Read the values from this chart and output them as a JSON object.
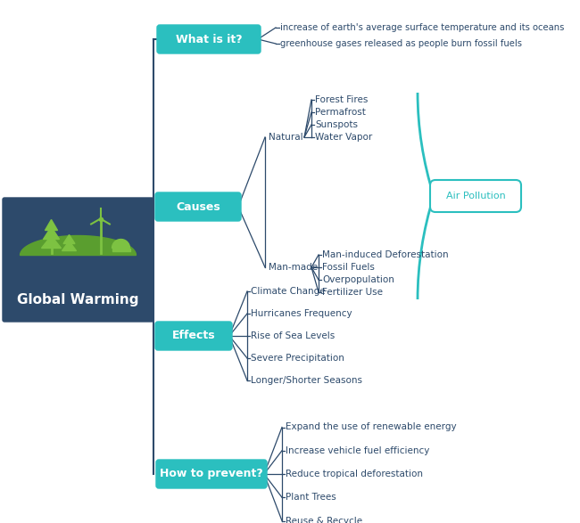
{
  "title": "Global Warming",
  "title_bg": "#2d4a6b",
  "title_text_color": "#ffffff",
  "branch_color": "#2d4a6b",
  "node_bg": "#2bbfbf",
  "node_text_color": "#ffffff",
  "leaf_text_color": "#2d4a6b",
  "air_pollution_color": "#2bbfbf",
  "what_leaves": [
    "increase of earth's average surface temperature and its oceans",
    "greenhouse gases released as people burn fossil fuels"
  ],
  "nat_leaves": [
    "Forest Fires",
    "Permafrost",
    "Sunspots",
    "Water Vapor"
  ],
  "man_leaves": [
    "Man-induced Deforestation",
    "Fossil Fuels",
    "Overpopulation",
    "Fertilizer Use"
  ],
  "eff_leaves": [
    "Climate Change",
    "Hurricanes Frequency",
    "Rise of Sea Levels",
    "Severe Precipitation",
    "Longer/Shorter Seasons"
  ],
  "prev_leaves": [
    "Expand the use of renewable energy",
    "Increase vehicle fuel efficiency",
    "Reduce tropical deforestation",
    "Plant Trees",
    "Reuse & Recycle"
  ]
}
